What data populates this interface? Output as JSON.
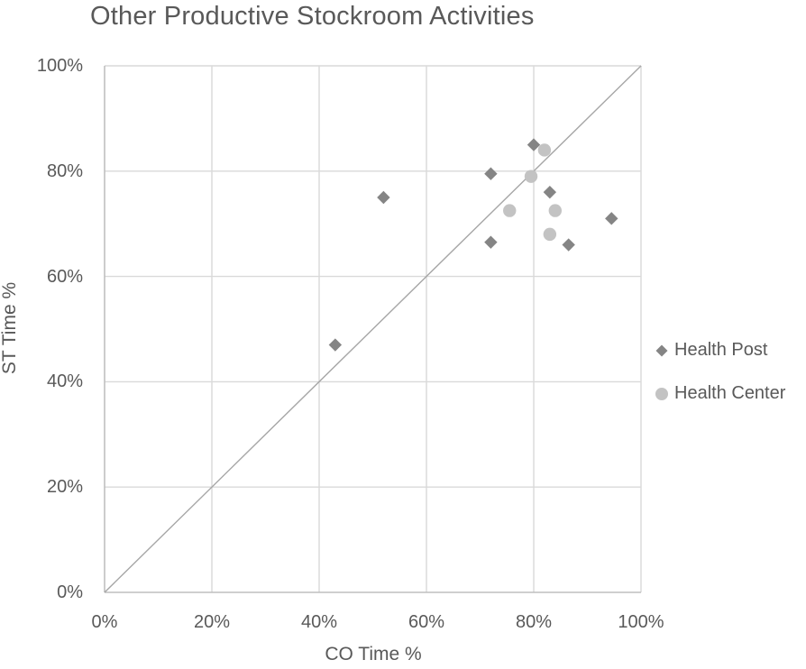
{
  "page": {
    "background": "#ffffff"
  },
  "chart_data": {
    "type": "scatter",
    "title": "Other Productive Stockroom Activities",
    "xlabel": "CO Time %",
    "ylabel": "ST Time %",
    "xlim": [
      0,
      100
    ],
    "ylim": [
      0,
      100
    ],
    "tick_values": [
      0,
      20,
      40,
      60,
      80,
      100
    ],
    "x_tick_labels": [
      "0%",
      "20%",
      "40%",
      "60%",
      "80%",
      "100%"
    ],
    "y_tick_labels": [
      "0%",
      "20%",
      "40%",
      "60%",
      "80%",
      "100%"
    ],
    "grid": true,
    "legend_position": "right-middle",
    "reference_line": {
      "type": "diagonal",
      "from": [
        0,
        0
      ],
      "to": [
        100,
        100
      ]
    },
    "series": [
      {
        "name": "Health Post",
        "marker": "diamond",
        "color": "#858585",
        "points": [
          [
            43,
            47
          ],
          [
            52,
            75
          ],
          [
            72,
            66.5
          ],
          [
            72,
            79.5
          ],
          [
            80,
            85
          ],
          [
            83,
            76
          ],
          [
            86.5,
            66
          ],
          [
            94.5,
            71
          ]
        ]
      },
      {
        "name": "Health Center",
        "marker": "circle",
        "color": "#c3c3c3",
        "points": [
          [
            75.5,
            72.5
          ],
          [
            79.5,
            79
          ],
          [
            82,
            84
          ],
          [
            83,
            68
          ],
          [
            84,
            72.5
          ]
        ]
      }
    ],
    "colors": {
      "text": "#595959",
      "gridline": "#d9d9d9",
      "axis_line": "#bfbfbf",
      "diagonal_line": "#a6a6a6"
    }
  }
}
